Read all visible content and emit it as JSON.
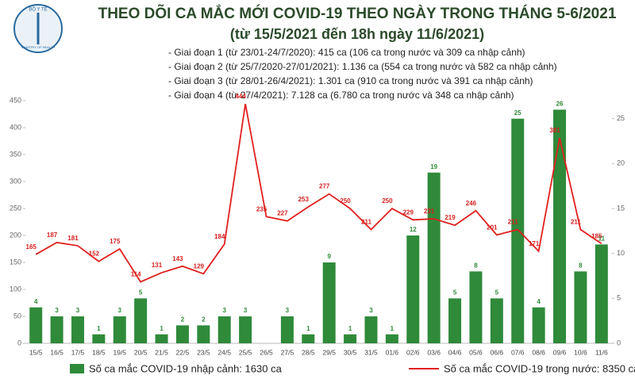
{
  "chart_data": {
    "type": "combo",
    "logo_text": "BỘ Y TẾ",
    "logo_subtext": "MINISTRY OF HEALTH",
    "title": "THEO DÕI CA MẮC MỚI COVID-19 THEO NGÀY TRONG THÁNG 5-6/2021",
    "subtitle": "(từ 15/5/2021 đến 18h ngày 11/6/2021)",
    "annotations": [
      "- Giai đoạn 1 (từ 23/01-24/7/2020): 415 ca (106 ca trong nước và 309 ca nhập cảnh)",
      "- Giai đoạn 2 (từ 25/7/2020-27/01/2021): 1.136 ca (554 ca trong nước và 582 ca nhập cảnh)",
      "- Giai đoạn 3 (từ 28/01-26/4/2021): 1.301 ca (910 ca trong nước và 391 ca nhập cảnh)",
      "- Giai đoạn 4 (từ 27/4/2021): 7.128 ca (6.780 ca trong nước và 348 ca nhập cảnh)"
    ],
    "categories": [
      "15/5",
      "16/5",
      "17/5",
      "18/5",
      "19/5",
      "20/5",
      "21/5",
      "22/5",
      "23/5",
      "24/5",
      "25/5",
      "26/5",
      "27/5",
      "28/5",
      "29/5",
      "30/5",
      "31/5",
      "01/6",
      "02/6",
      "03/6",
      "04/6",
      "05/6",
      "06/6",
      "07/6",
      "08/6",
      "09/6",
      "10/6",
      "11/6"
    ],
    "series": [
      {
        "name": "Số ca mắc COVID-19 nhập cảnh: 1630 ca",
        "type": "bar",
        "axis": "y2",
        "color": "#2f8a3a",
        "values": [
          4,
          3,
          3,
          1,
          3,
          5,
          1,
          2,
          2,
          3,
          3,
          null,
          3,
          1,
          9,
          1,
          3,
          1,
          12,
          19,
          5,
          8,
          5,
          25,
          4,
          26,
          8,
          11
        ]
      },
      {
        "name": "Số ca mắc COVID-19 trong nước: 8350 ca",
        "type": "line",
        "color": "#e0201e",
        "values": [
          165,
          187,
          181,
          152,
          175,
          114,
          131,
          143,
          129,
          184,
          444,
          235,
          227,
          253,
          277,
          250,
          211,
          250,
          229,
          231,
          219,
          246,
          201,
          211,
          171,
          381,
          211,
          185
        ]
      }
    ],
    "ylim": [
      0,
      450
    ],
    "yticks": [
      0,
      50,
      100,
      150,
      200,
      250,
      300,
      350,
      400,
      450
    ],
    "y2lim": [
      0,
      27
    ],
    "y2ticks": [
      0,
      5,
      10,
      15,
      20,
      25
    ]
  }
}
